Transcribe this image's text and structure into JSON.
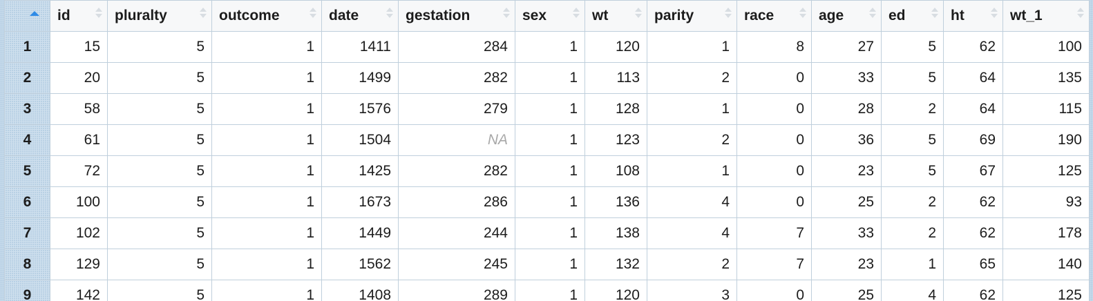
{
  "table": {
    "columns": [
      "id",
      "pluralty",
      "outcome",
      "date",
      "gestation",
      "sex",
      "wt",
      "parity",
      "race",
      "age",
      "ed",
      "ht",
      "wt_1"
    ],
    "rows": [
      {
        "n": "1",
        "cells": [
          "15",
          "5",
          "1",
          "1411",
          "284",
          "1",
          "120",
          "1",
          "8",
          "27",
          "5",
          "62",
          "100"
        ]
      },
      {
        "n": "2",
        "cells": [
          "20",
          "5",
          "1",
          "1499",
          "282",
          "1",
          "113",
          "2",
          "0",
          "33",
          "5",
          "64",
          "135"
        ]
      },
      {
        "n": "3",
        "cells": [
          "58",
          "5",
          "1",
          "1576",
          "279",
          "1",
          "128",
          "1",
          "0",
          "28",
          "2",
          "64",
          "115"
        ]
      },
      {
        "n": "4",
        "cells": [
          "61",
          "5",
          "1",
          "1504",
          "NA",
          "1",
          "123",
          "2",
          "0",
          "36",
          "5",
          "69",
          "190"
        ]
      },
      {
        "n": "5",
        "cells": [
          "72",
          "5",
          "1",
          "1425",
          "282",
          "1",
          "108",
          "1",
          "0",
          "23",
          "5",
          "67",
          "125"
        ]
      },
      {
        "n": "6",
        "cells": [
          "100",
          "5",
          "1",
          "1673",
          "286",
          "1",
          "136",
          "4",
          "0",
          "25",
          "2",
          "62",
          "93"
        ]
      },
      {
        "n": "7",
        "cells": [
          "102",
          "5",
          "1",
          "1449",
          "244",
          "1",
          "138",
          "4",
          "7",
          "33",
          "2",
          "62",
          "178"
        ]
      },
      {
        "n": "8",
        "cells": [
          "129",
          "5",
          "1",
          "1562",
          "245",
          "1",
          "132",
          "2",
          "7",
          "23",
          "1",
          "65",
          "140"
        ]
      },
      {
        "n": "9",
        "cells": [
          "142",
          "5",
          "1",
          "1408",
          "289",
          "1",
          "120",
          "3",
          "0",
          "25",
          "4",
          "62",
          "125"
        ]
      }
    ]
  }
}
